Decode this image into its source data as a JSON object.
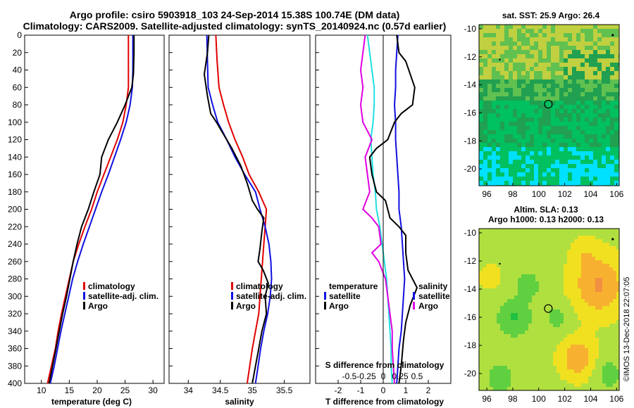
{
  "header": {
    "title_line1": "Argo profile: csiro 5903918_103 24-Sep-2014 15.38S 100.74E (DM data)",
    "title_line2": "Climatology: CARS2009. Satellite-adjusted climatology: synTS_20140924.nc (0.57d earlier)"
  },
  "footer": {
    "stamp": "©IMOS 13-Dec-2018 22:07:05"
  },
  "colors": {
    "climatology": "#e00000",
    "satellite": "#1010e0",
    "argo": "#000000",
    "t_sat": "#20e0e0",
    "s_sat": "#1010e0",
    "s_argo": "#000000",
    "t_argo": "#e000e0"
  },
  "chart_data": [
    {
      "id": "temperature",
      "type": "line",
      "xlabel": "temperature (deg C)",
      "ylabel": "",
      "xlim": [
        7,
        32
      ],
      "ylim": [
        400,
        0
      ],
      "xticks": [
        10,
        15,
        20,
        25,
        30
      ],
      "yticks": [
        0,
        20,
        40,
        60,
        80,
        100,
        120,
        140,
        160,
        180,
        200,
        220,
        240,
        260,
        280,
        300,
        320,
        340,
        360,
        380,
        400
      ],
      "legend": [
        "climatology",
        "satellite-adj. clim.",
        "Argo"
      ],
      "series": [
        {
          "name": "climatology",
          "color": "#e00000",
          "points": [
            [
              25.6,
              0
            ],
            [
              25.6,
              40
            ],
            [
              25.6,
              60
            ],
            [
              25.2,
              80
            ],
            [
              24.6,
              100
            ],
            [
              23.6,
              120
            ],
            [
              22.4,
              140
            ],
            [
              21.2,
              160
            ],
            [
              20.0,
              180
            ],
            [
              19.0,
              200
            ],
            [
              17.8,
              220
            ],
            [
              16.7,
              240
            ],
            [
              15.7,
              260
            ],
            [
              15.0,
              280
            ],
            [
              14.3,
              300
            ],
            [
              13.6,
              320
            ],
            [
              13.0,
              340
            ],
            [
              12.5,
              360
            ],
            [
              11.8,
              380
            ],
            [
              11.1,
              400
            ]
          ]
        },
        {
          "name": "satellite-adj. clim.",
          "color": "#1010e0",
          "points": [
            [
              26.4,
              0
            ],
            [
              26.4,
              40
            ],
            [
              26.3,
              60
            ],
            [
              25.9,
              80
            ],
            [
              25.2,
              100
            ],
            [
              24.2,
              120
            ],
            [
              23.1,
              140
            ],
            [
              22.0,
              160
            ],
            [
              20.8,
              180
            ],
            [
              19.7,
              200
            ],
            [
              18.6,
              220
            ],
            [
              17.5,
              240
            ],
            [
              16.5,
              260
            ],
            [
              15.6,
              280
            ],
            [
              14.9,
              300
            ],
            [
              14.2,
              320
            ],
            [
              13.5,
              340
            ],
            [
              12.9,
              360
            ],
            [
              12.3,
              380
            ],
            [
              11.6,
              400
            ]
          ]
        },
        {
          "name": "Argo",
          "color": "#000000",
          "points": [
            [
              26.6,
              0
            ],
            [
              26.6,
              20
            ],
            [
              26.5,
              45
            ],
            [
              26.2,
              60
            ],
            [
              25.0,
              80
            ],
            [
              23.6,
              100
            ],
            [
              22.0,
              120
            ],
            [
              20.8,
              140
            ],
            [
              20.5,
              160
            ],
            [
              19.4,
              180
            ],
            [
              18.4,
              200
            ],
            [
              17.2,
              220
            ],
            [
              16.4,
              240
            ],
            [
              15.7,
              260
            ],
            [
              15.1,
              280
            ],
            [
              14.5,
              300
            ],
            [
              13.8,
              320
            ],
            [
              13.2,
              340
            ],
            [
              12.6,
              360
            ],
            [
              12.0,
              380
            ],
            [
              11.4,
              400
            ]
          ]
        }
      ]
    },
    {
      "id": "salinity",
      "type": "line",
      "xlabel": "salinity",
      "ylabel": "",
      "xlim": [
        33.7,
        35.9
      ],
      "ylim": [
        400,
        0
      ],
      "xticks": [
        34,
        34.5,
        35,
        35.5
      ],
      "legend": [
        "climatology",
        "satellite-adj. clim.",
        "Argo"
      ],
      "series": [
        {
          "name": "climatology",
          "color": "#e00000",
          "points": [
            [
              34.43,
              0
            ],
            [
              34.45,
              30
            ],
            [
              34.48,
              60
            ],
            [
              34.55,
              80
            ],
            [
              34.63,
              100
            ],
            [
              34.73,
              120
            ],
            [
              34.85,
              140
            ],
            [
              34.95,
              160
            ],
            [
              35.1,
              180
            ],
            [
              35.22,
              200
            ],
            [
              35.2,
              220
            ],
            [
              35.18,
              240
            ],
            [
              35.16,
              260
            ],
            [
              35.14,
              280
            ],
            [
              35.12,
              300
            ],
            [
              35.1,
              320
            ],
            [
              35.05,
              340
            ],
            [
              35.0,
              360
            ],
            [
              34.96,
              380
            ],
            [
              34.92,
              400
            ]
          ]
        },
        {
          "name": "satellite-adj. clim.",
          "color": "#1010e0",
          "points": [
            [
              34.29,
              0
            ],
            [
              34.3,
              30
            ],
            [
              34.31,
              60
            ],
            [
              34.38,
              80
            ],
            [
              34.46,
              100
            ],
            [
              34.6,
              120
            ],
            [
              34.73,
              140
            ],
            [
              34.88,
              160
            ],
            [
              35.05,
              180
            ],
            [
              35.12,
              200
            ],
            [
              35.2,
              220
            ],
            [
              35.26,
              240
            ],
            [
              35.29,
              260
            ],
            [
              35.3,
              280
            ],
            [
              35.28,
              300
            ],
            [
              35.24,
              320
            ],
            [
              35.18,
              340
            ],
            [
              35.13,
              360
            ],
            [
              35.09,
              380
            ],
            [
              35.05,
              400
            ]
          ]
        },
        {
          "name": "Argo",
          "color": "#000000",
          "points": [
            [
              34.32,
              0
            ],
            [
              34.3,
              20
            ],
            [
              34.25,
              45
            ],
            [
              34.3,
              70
            ],
            [
              34.35,
              90
            ],
            [
              34.44,
              100
            ],
            [
              34.52,
              110
            ],
            [
              34.68,
              130
            ],
            [
              34.82,
              150
            ],
            [
              34.92,
              170
            ],
            [
              35.0,
              190
            ],
            [
              35.08,
              200
            ],
            [
              35.18,
              210
            ],
            [
              35.15,
              225
            ],
            [
              35.12,
              245
            ],
            [
              35.09,
              260
            ],
            [
              35.17,
              270
            ],
            [
              35.25,
              285
            ],
            [
              35.2,
              300
            ],
            [
              35.22,
              320
            ],
            [
              35.15,
              340
            ],
            [
              35.1,
              360
            ],
            [
              35.05,
              380
            ],
            [
              35.0,
              400
            ]
          ]
        }
      ]
    },
    {
      "id": "differences",
      "type": "line",
      "xlabel": "T difference from climatology",
      "ylabel": "",
      "top_axis_label": "S difference from climatology",
      "xlim": [
        -3,
        3
      ],
      "ylim": [
        400,
        0
      ],
      "xticks": [
        -2,
        -1,
        0,
        1,
        2
      ],
      "top_xticks": [
        "-0.5",
        "-0.25",
        "0",
        "0.25",
        "0.5"
      ],
      "legend_temperature_title": "temperature",
      "legend_salinity_title": "salinity",
      "series": [
        {
          "name": "T satellite",
          "color": "#20e0e0",
          "points": [
            [
              -0.7,
              0
            ],
            [
              -0.6,
              20
            ],
            [
              -0.5,
              40
            ],
            [
              -0.4,
              60
            ],
            [
              -0.4,
              80
            ],
            [
              -0.45,
              100
            ],
            [
              -0.55,
              120
            ],
            [
              -0.5,
              140
            ],
            [
              -0.45,
              160
            ],
            [
              -0.35,
              180
            ],
            [
              -0.3,
              200
            ],
            [
              -0.15,
              220
            ],
            [
              -0.05,
              240
            ],
            [
              0.05,
              260
            ],
            [
              0.15,
              280
            ],
            [
              0.2,
              300
            ],
            [
              0.25,
              320
            ],
            [
              0.3,
              340
            ],
            [
              0.35,
              360
            ],
            [
              0.35,
              380
            ],
            [
              0.4,
              400
            ]
          ]
        },
        {
          "name": "S satellite",
          "color": "#1010e0",
          "points": [
            [
              0.65,
              0
            ],
            [
              0.6,
              20
            ],
            [
              0.55,
              40
            ],
            [
              0.55,
              60
            ],
            [
              0.5,
              80
            ],
            [
              0.55,
              100
            ],
            [
              0.55,
              120
            ],
            [
              0.6,
              140
            ],
            [
              0.65,
              160
            ],
            [
              0.7,
              180
            ],
            [
              0.7,
              200
            ],
            [
              0.8,
              220
            ],
            [
              0.85,
              240
            ],
            [
              0.9,
              260
            ],
            [
              0.95,
              280
            ],
            [
              0.9,
              300
            ],
            [
              0.85,
              320
            ],
            [
              0.8,
              340
            ],
            [
              0.7,
              360
            ],
            [
              0.65,
              380
            ],
            [
              0.6,
              400
            ]
          ]
        },
        {
          "name": "S Argo",
          "color": "#000000",
          "points": [
            [
              0.6,
              0
            ],
            [
              0.7,
              20
            ],
            [
              1.0,
              30
            ],
            [
              1.4,
              60
            ],
            [
              1.3,
              80
            ],
            [
              0.8,
              90
            ],
            [
              0.5,
              100
            ],
            [
              0.2,
              120
            ],
            [
              -0.3,
              130
            ],
            [
              -0.6,
              140
            ],
            [
              -0.5,
              160
            ],
            [
              -0.3,
              180
            ],
            [
              0.1,
              190
            ],
            [
              0.3,
              210
            ],
            [
              0.7,
              220
            ],
            [
              1.0,
              230
            ],
            [
              1.0,
              250
            ],
            [
              1.1,
              270
            ],
            [
              1.5,
              290
            ],
            [
              1.2,
              310
            ],
            [
              1.0,
              330
            ],
            [
              0.9,
              350
            ],
            [
              0.8,
              380
            ],
            [
              0.7,
              400
            ]
          ]
        },
        {
          "name": "T Argo",
          "color": "#e000e0",
          "points": [
            [
              -0.8,
              0
            ],
            [
              -0.9,
              20
            ],
            [
              -1.0,
              40
            ],
            [
              -0.9,
              60
            ],
            [
              -1.0,
              80
            ],
            [
              -0.9,
              100
            ],
            [
              -0.5,
              120
            ],
            [
              -0.8,
              140
            ],
            [
              -0.7,
              160
            ],
            [
              -0.6,
              180
            ],
            [
              -0.9,
              200
            ],
            [
              -0.5,
              210
            ],
            [
              -0.2,
              220
            ],
            [
              -0.1,
              240
            ],
            [
              -0.5,
              250
            ],
            [
              -0.2,
              260
            ],
            [
              0.1,
              280
            ],
            [
              0.2,
              300
            ],
            [
              0.3,
              320
            ],
            [
              0.4,
              340
            ],
            [
              0.4,
              360
            ],
            [
              0.45,
              380
            ],
            [
              0.5,
              400
            ]
          ]
        }
      ]
    },
    {
      "id": "sst_map",
      "type": "heatmap",
      "title": "sat. SST: 25.9 Argo: 26.4",
      "xlim": [
        95.4,
        106.2
      ],
      "ylim": [
        -21.2,
        -9.7
      ],
      "xticks": [
        96,
        98,
        100,
        102,
        104,
        106
      ],
      "yticks": [
        -10,
        -12,
        -14,
        -16,
        -18,
        -20
      ],
      "argo_location": [
        100.74,
        -15.38
      ],
      "palette": [
        "#00e0ff",
        "#00c060",
        "#20a050",
        "#60c050",
        "#c0d040",
        "#f0a020"
      ]
    },
    {
      "id": "sla_map",
      "type": "heatmap",
      "title_line1": "Altim. SLA: 0.13",
      "title_line2": "Argo h1000: 0.13 h2000: 0.13",
      "xlim": [
        95.4,
        106.2
      ],
      "ylim": [
        -21.2,
        -9.7
      ],
      "xticks": [
        96,
        98,
        100,
        102,
        104,
        106
      ],
      "yticks": [
        -10,
        -12,
        -14,
        -16,
        -18,
        -20
      ],
      "argo_location": [
        100.74,
        -15.38
      ],
      "palette": [
        "#20c040",
        "#60d040",
        "#b0e040",
        "#f0e020",
        "#f8b030",
        "#f09040"
      ]
    }
  ]
}
